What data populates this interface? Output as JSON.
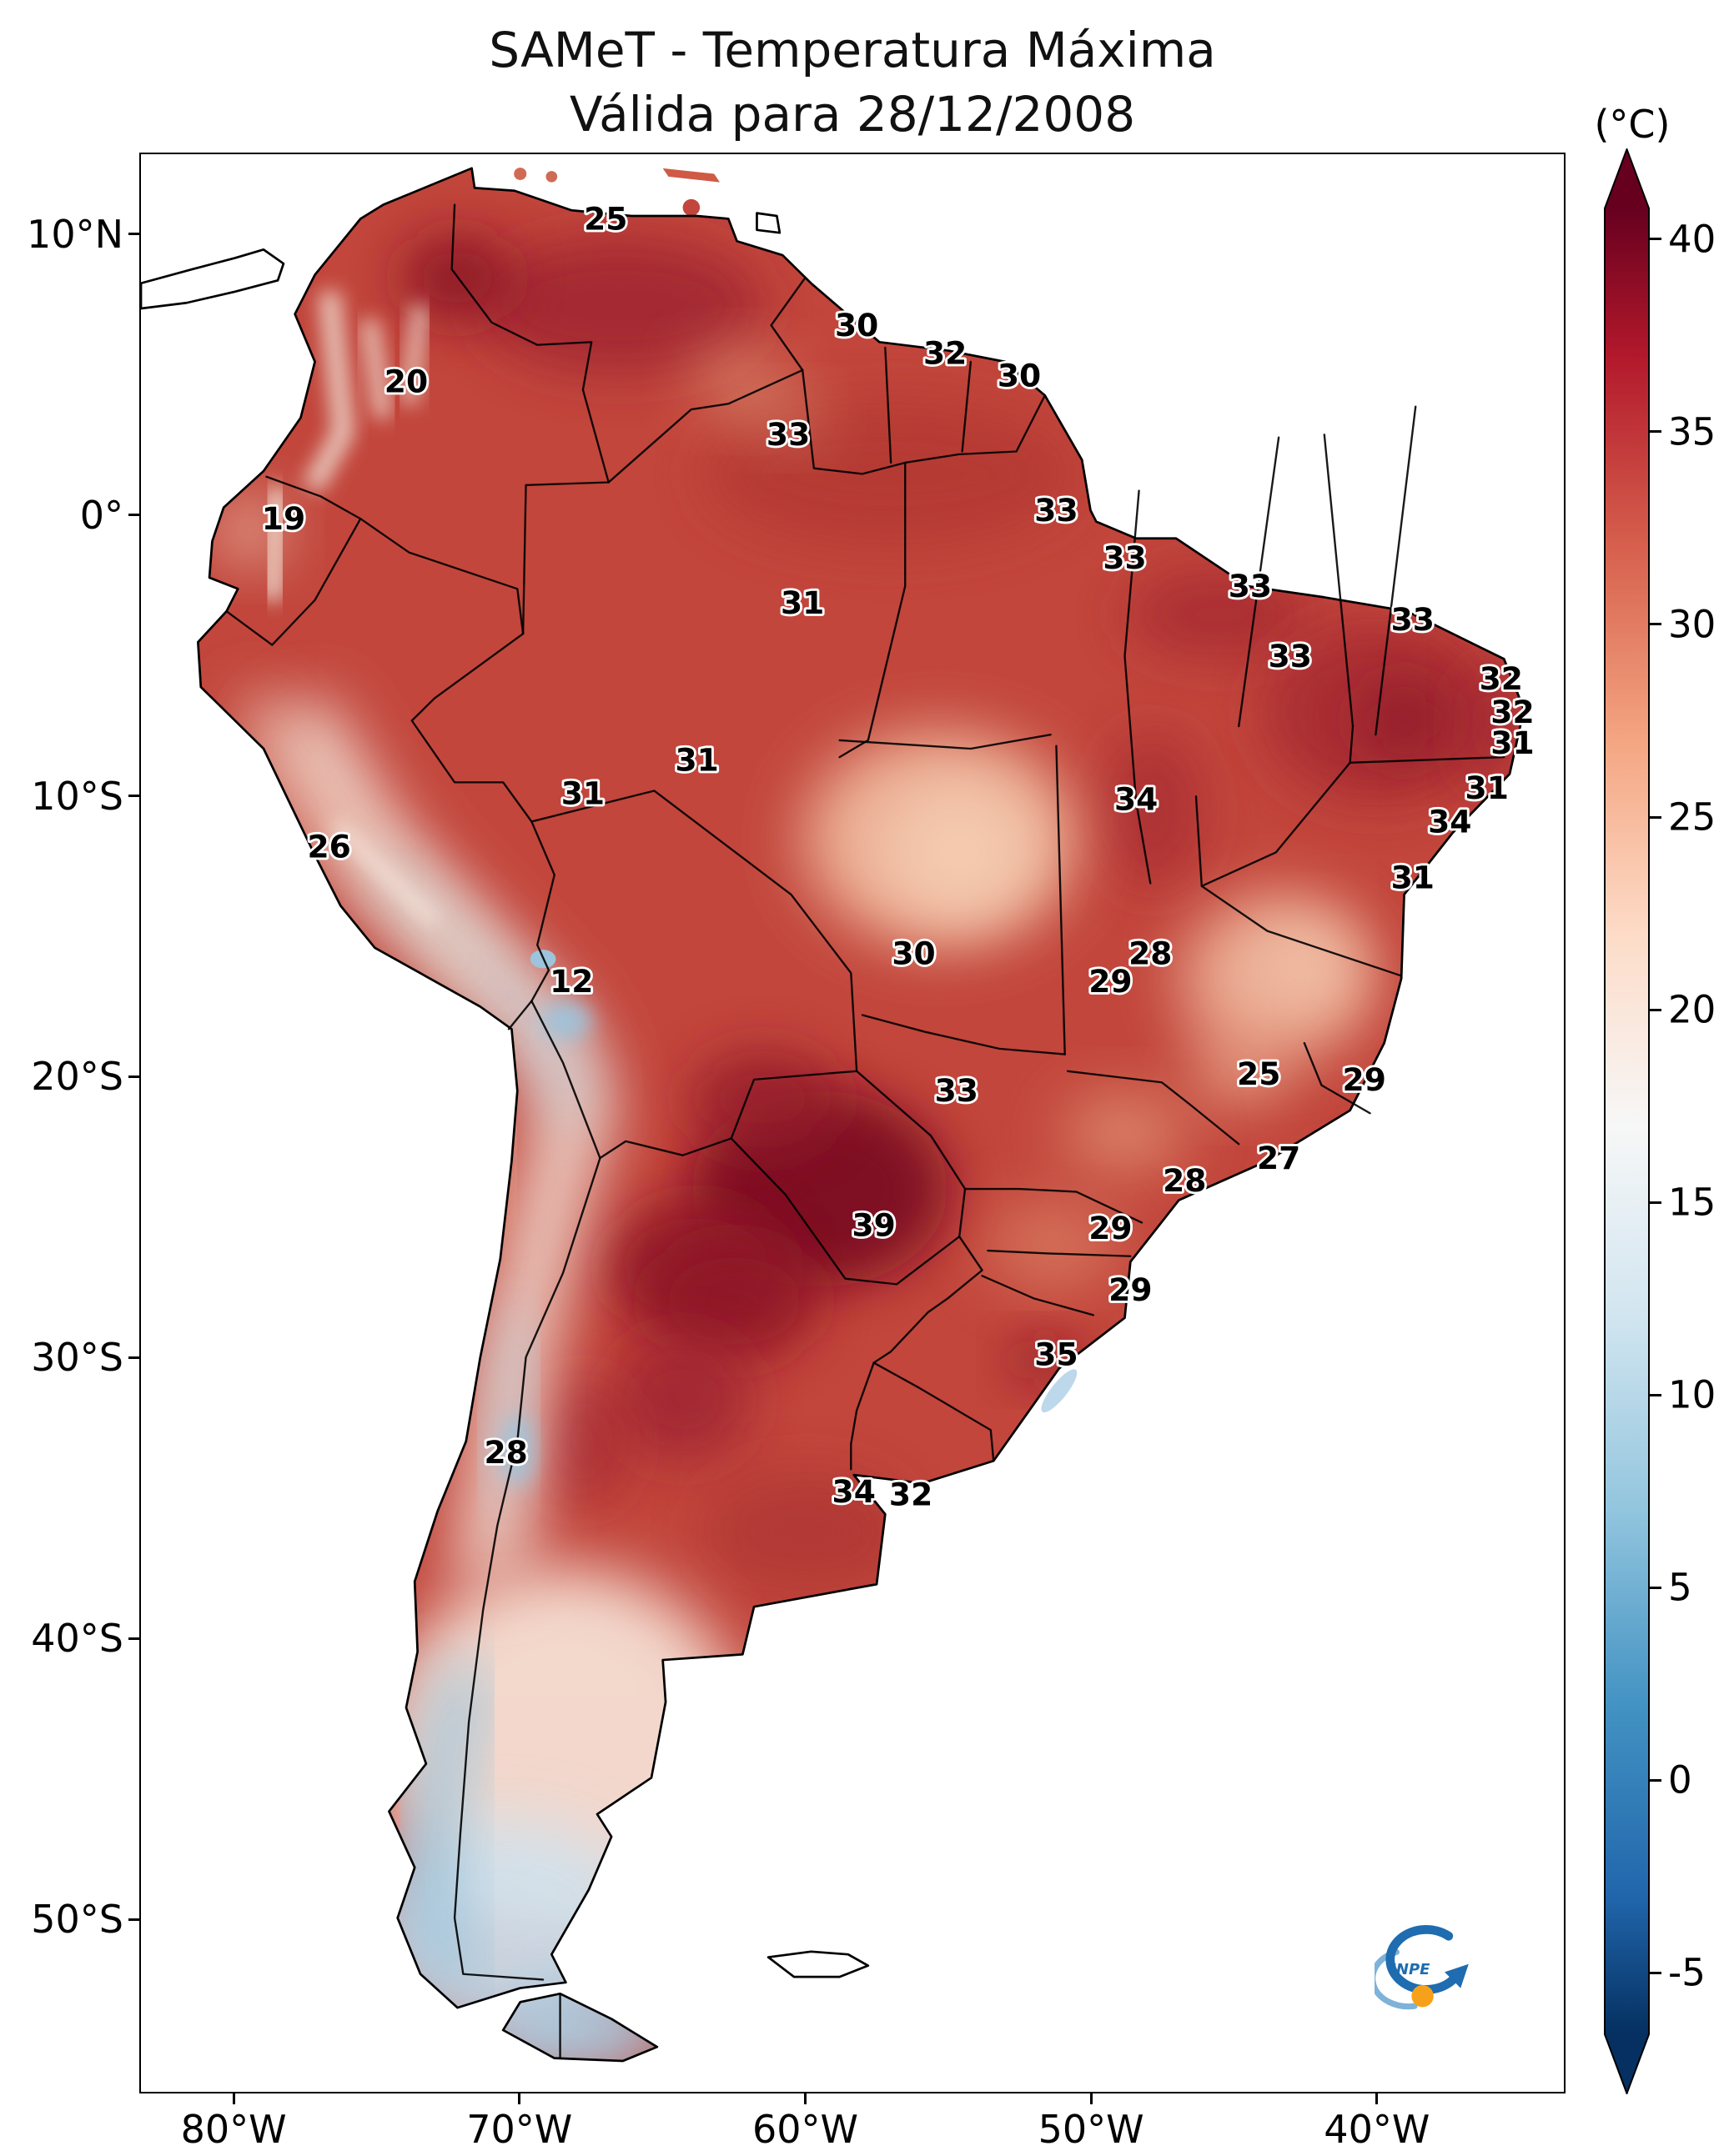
{
  "title": {
    "line1": "SAMeT - Temperatura Máxima",
    "line2": "Válida para 28/12/2008"
  },
  "colorbar": {
    "unit_label": "(°C)",
    "ticks": [
      {
        "label": "40",
        "value": 40
      },
      {
        "label": "35",
        "value": 35
      },
      {
        "label": "30",
        "value": 30
      },
      {
        "label": "25",
        "value": 25
      },
      {
        "label": "20",
        "value": 20
      },
      {
        "label": "15",
        "value": 15
      },
      {
        "label": "10",
        "value": 10
      },
      {
        "label": "5",
        "value": 5
      },
      {
        "label": "0",
        "value": 0
      },
      {
        "label": "-5",
        "value": -5
      }
    ],
    "anchors": [
      {
        "value": 42,
        "color": "#67001f"
      },
      {
        "value": 37,
        "color": "#b2182b"
      },
      {
        "value": 32,
        "color": "#d6604d"
      },
      {
        "value": 27,
        "color": "#f4a582"
      },
      {
        "value": 22,
        "color": "#fddbc7"
      },
      {
        "value": 17,
        "color": "#f7f7f7"
      },
      {
        "value": 12,
        "color": "#d1e5f0"
      },
      {
        "value": 7,
        "color": "#92c5de"
      },
      {
        "value": 2,
        "color": "#4393c3"
      },
      {
        "value": -3,
        "color": "#2166ac"
      },
      {
        "value": -8,
        "color": "#053061"
      }
    ]
  },
  "axes": {
    "x_ticks": [
      {
        "label": "80°W",
        "lon": -80
      },
      {
        "label": "70°W",
        "lon": -70
      },
      {
        "label": "60°W",
        "lon": -60
      },
      {
        "label": "50°W",
        "lon": -50
      },
      {
        "label": "40°W",
        "lon": -40
      }
    ],
    "y_ticks": [
      {
        "label": "10°N",
        "lat": 10
      },
      {
        "label": "0°",
        "lat": 0
      },
      {
        "label": "10°S",
        "lat": -10
      },
      {
        "label": "20°S",
        "lat": -20
      },
      {
        "label": "30°S",
        "lat": -30
      },
      {
        "label": "40°S",
        "lat": -40
      },
      {
        "label": "50°S",
        "lat": -50
      }
    ]
  },
  "logo": {
    "text": "INPE"
  },
  "chart_data": {
    "type": "heatmap",
    "title": "SAMeT - Temperatura Máxima",
    "subtitle": "Válida para 28/12/2008",
    "unit": "°C",
    "colormap": "RdBu_r",
    "colorbar_range": [
      -5,
      40
    ],
    "lon_range": [
      -83.3,
      -33.4
    ],
    "lat_range": [
      -56.2,
      12.9
    ],
    "annotations": [
      {
        "value": 25,
        "lon": -67.0,
        "lat": 10.6
      },
      {
        "value": 30,
        "lon": -58.2,
        "lat": 6.8
      },
      {
        "value": 32,
        "lon": -55.1,
        "lat": 5.8
      },
      {
        "value": 30,
        "lon": -52.5,
        "lat": 5.0
      },
      {
        "value": 20,
        "lon": -74.0,
        "lat": 4.8
      },
      {
        "value": 33,
        "lon": -60.6,
        "lat": 2.9
      },
      {
        "value": 19,
        "lon": -78.3,
        "lat": -0.1
      },
      {
        "value": 33,
        "lon": -51.2,
        "lat": 0.2
      },
      {
        "value": 33,
        "lon": -48.8,
        "lat": -1.5
      },
      {
        "value": 33,
        "lon": -44.4,
        "lat": -2.5
      },
      {
        "value": 31,
        "lon": -60.1,
        "lat": -3.1
      },
      {
        "value": 33,
        "lon": -43.0,
        "lat": -5.0
      },
      {
        "value": 33,
        "lon": -38.7,
        "lat": -3.7
      },
      {
        "value": 32,
        "lon": -35.6,
        "lat": -5.8
      },
      {
        "value": 32,
        "lon": -35.2,
        "lat": -7.0
      },
      {
        "value": 31,
        "lon": -35.2,
        "lat": -8.1
      },
      {
        "value": 31,
        "lon": -63.8,
        "lat": -8.7
      },
      {
        "value": 31,
        "lon": -67.8,
        "lat": -9.9
      },
      {
        "value": 34,
        "lon": -48.4,
        "lat": -10.1
      },
      {
        "value": 31,
        "lon": -36.1,
        "lat": -9.7
      },
      {
        "value": 34,
        "lon": -37.4,
        "lat": -10.9
      },
      {
        "value": 26,
        "lon": -76.7,
        "lat": -11.8
      },
      {
        "value": 31,
        "lon": -38.7,
        "lat": -12.9
      },
      {
        "value": 28,
        "lon": -47.9,
        "lat": -15.6
      },
      {
        "value": 29,
        "lon": -49.3,
        "lat": -16.6
      },
      {
        "value": 30,
        "lon": -56.2,
        "lat": -15.6
      },
      {
        "value": 12,
        "lon": -68.2,
        "lat": -16.6
      },
      {
        "value": 25,
        "lon": -44.1,
        "lat": -19.9
      },
      {
        "value": 29,
        "lon": -40.4,
        "lat": -20.1
      },
      {
        "value": 33,
        "lon": -54.7,
        "lat": -20.5
      },
      {
        "value": 27,
        "lon": -43.4,
        "lat": -22.9
      },
      {
        "value": 28,
        "lon": -46.7,
        "lat": -23.7
      },
      {
        "value": 39,
        "lon": -57.6,
        "lat": -25.3
      },
      {
        "value": 29,
        "lon": -49.3,
        "lat": -25.4
      },
      {
        "value": 29,
        "lon": -48.6,
        "lat": -27.6
      },
      {
        "value": 35,
        "lon": -51.2,
        "lat": -29.9
      },
      {
        "value": 28,
        "lon": -70.5,
        "lat": -33.4
      },
      {
        "value": 34,
        "lon": -58.3,
        "lat": -34.8
      },
      {
        "value": 32,
        "lon": -56.3,
        "lat": -34.9
      }
    ]
  }
}
